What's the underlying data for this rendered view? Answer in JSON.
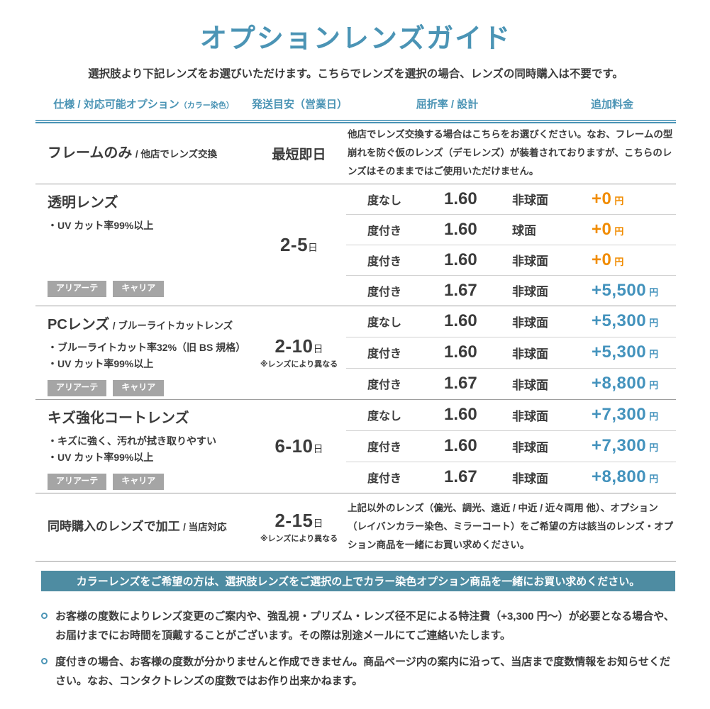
{
  "page": {
    "title": "オプションレンズガイド",
    "subtitle": "選択肢より下記レンズをお選びいただけます。こちらでレンズを選択の場合、レンズの同時購入は不要です。"
  },
  "colors": {
    "accent_blue": "#4b94b5",
    "banner_teal": "#4e8ca2",
    "price_orange": "#f18c00",
    "price_blue": "#4493bd",
    "badge_gray": "#a5a5a5",
    "text_dark": "#3b3b3b"
  },
  "table": {
    "headers": [
      {
        "label": "仕様 / 対応可能オプション",
        "sub": "（カラー染色）"
      },
      {
        "label": "発送目安（営業日）"
      },
      {
        "label": "屈折率 / 設計"
      },
      {
        "label": "追加料金"
      }
    ],
    "sections": [
      {
        "title": "フレームのみ",
        "sub": "/ 他店でレンズ交換",
        "shipping": {
          "main": "最短即日"
        },
        "desc": "他店でレンズ交換する場合はこちらをお選びください。なお、フレームの型崩れを防ぐ仮のレンズ（デモレンズ）が装着されておりますが、こちらのレンズはそのままではご使用いただけません。"
      },
      {
        "title": "透明レンズ",
        "bullets": [
          "・UV カット率99%以上"
        ],
        "badges": [
          "アリアーテ",
          "キャリア"
        ],
        "shipping": {
          "days": "2-5",
          "unit": "日"
        },
        "rows": [
          {
            "rx": "度なし",
            "index": "1.60",
            "design": "非球面",
            "price": "+0",
            "unit": "円"
          },
          {
            "rx": "度付き",
            "index": "1.60",
            "design": "球面",
            "price": "+0",
            "unit": "円"
          },
          {
            "rx": "度付き",
            "index": "1.60",
            "design": "非球面",
            "price": "+0",
            "unit": "円"
          },
          {
            "rx": "度付き",
            "index": "1.67",
            "design": "非球面",
            "price": "+5,500",
            "unit": "円"
          }
        ]
      },
      {
        "title": "PCレンズ",
        "sub": "/ ブルーライトカットレンズ",
        "bullets": [
          "・ブルーライトカット率32%（旧 BS 規格）",
          "・UV カット率99%以上"
        ],
        "badges": [
          "アリアーテ",
          "キャリア"
        ],
        "shipping": {
          "days": "2-10",
          "unit": "日",
          "note": "※レンズにより異なる"
        },
        "rows": [
          {
            "rx": "度なし",
            "index": "1.60",
            "design": "非球面",
            "price": "+5,300",
            "unit": "円"
          },
          {
            "rx": "度付き",
            "index": "1.60",
            "design": "非球面",
            "price": "+5,300",
            "unit": "円"
          },
          {
            "rx": "度付き",
            "index": "1.67",
            "design": "非球面",
            "price": "+8,800",
            "unit": "円"
          }
        ]
      },
      {
        "title": "キズ強化コートレンズ",
        "bullets": [
          "・キズに強く、汚れが拭き取りやすい",
          "・UV カット率99%以上"
        ],
        "badges": [
          "アリアーテ",
          "キャリア"
        ],
        "shipping": {
          "days": "6-10",
          "unit": "日"
        },
        "rows": [
          {
            "rx": "度なし",
            "index": "1.60",
            "design": "非球面",
            "price": "+7,300",
            "unit": "円"
          },
          {
            "rx": "度付き",
            "index": "1.60",
            "design": "非球面",
            "price": "+7,300",
            "unit": "円"
          },
          {
            "rx": "度付き",
            "index": "1.67",
            "design": "非球面",
            "price": "+8,800",
            "unit": "円"
          }
        ]
      },
      {
        "title": "同時購入のレンズで加工",
        "sub": "/ 当店対応",
        "shipping": {
          "days": "2-15",
          "unit": "日",
          "note": "※レンズにより異なる"
        },
        "desc": "上記以外のレンズ（偏光、調光、遠近 / 中近 / 近々両用 他）、オプション（レイバンカラー染色、ミラーコート）をご希望の方は該当のレンズ・オプション商品を一緒にお買い求めください。"
      }
    ]
  },
  "banner": "カラーレンズをご希望の方は、選択肢レンズをご選択の上でカラー染色オプション商品を一緒にお買い求めください。",
  "notes": [
    "お客様の度数によりレンズ変更のご案内や、強乱視・プリズム・レンズ径不足による特注費（+3,300 円～）が必要となる場合や、お届けまでにお時間を頂戴することがございます。その際は別途メールにてご連絡いたします。",
    "度付きの場合、お客様の度数が分かりませんと作成できません。商品ページ内の案内に沿って、当店まで度数情報をお知らせください。なお、コンタクトレンズの度数ではお作り出来かねます。"
  ]
}
